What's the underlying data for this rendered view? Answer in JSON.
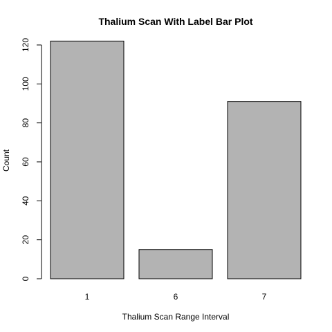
{
  "chart_data": {
    "type": "bar",
    "title": "Thalium Scan With Label Bar Plot",
    "xlabel": "Thalium Scan Range Interval",
    "ylabel": "Count",
    "categories": [
      "1",
      "6",
      "7"
    ],
    "values": [
      122,
      15,
      91
    ],
    "ylim": [
      0,
      120
    ],
    "yticks": [
      0,
      20,
      40,
      60,
      80,
      100,
      120
    ],
    "bar_color": "#b3b3b3",
    "grid": false,
    "legend": "none"
  }
}
